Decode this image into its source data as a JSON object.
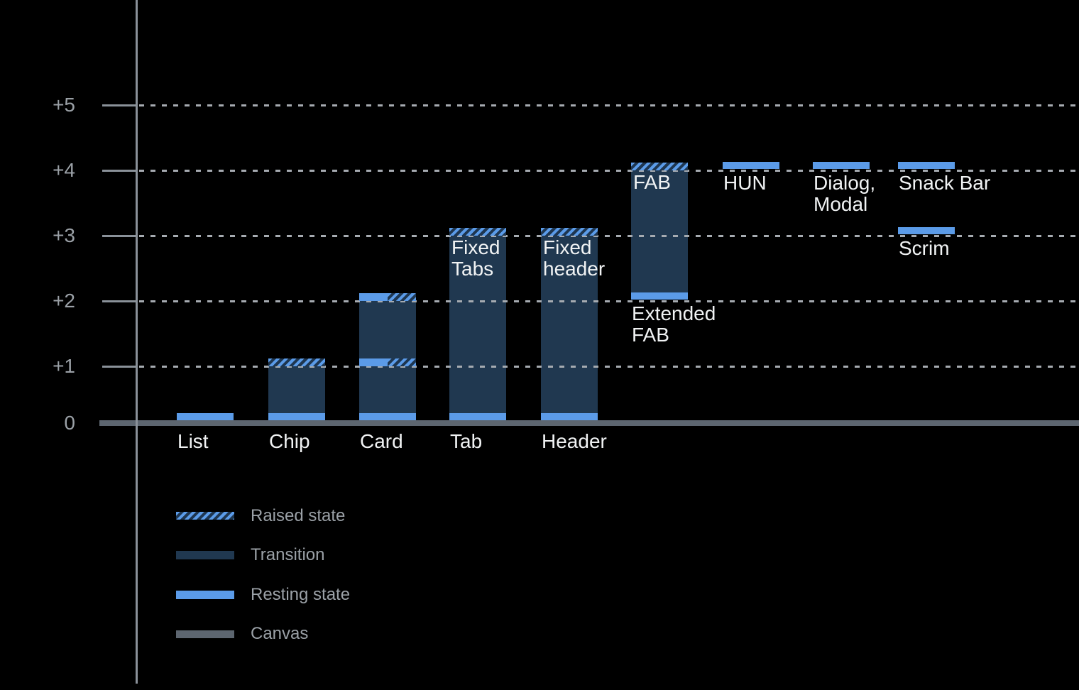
{
  "chart_data": {
    "type": "bar",
    "title": "",
    "y_axis": {
      "ticks": [
        "+5",
        "+4",
        "+3",
        "+2",
        "+1",
        "0"
      ],
      "range": [
        0,
        5
      ],
      "grid": "dotted-horizontal"
    },
    "legend": {
      "position": "bottom-left",
      "items": [
        {
          "label": "Raised state",
          "style": "hatched"
        },
        {
          "label": "Transition",
          "style": "navy"
        },
        {
          "label": "Resting state",
          "style": "blue"
        },
        {
          "label": "Canvas",
          "style": "gray"
        }
      ]
    },
    "colors": {
      "background": "#000000",
      "resting_blue": "#5B9BE8",
      "transition_navy": "#203850",
      "canvas_gray": "#5D6670",
      "axis_gray": "#8A9199",
      "grid_dot_gray": "#A6ABB1",
      "muted_text": "#9BA1A7",
      "label_text": "#F1F3F4"
    },
    "bars": [
      {
        "name": "List",
        "col": 0,
        "axis_label": "List",
        "segments": [
          {
            "kind": "resting",
            "level": 0
          }
        ]
      },
      {
        "name": "Chip",
        "col": 1,
        "axis_label": "Chip",
        "segments": [
          {
            "kind": "resting",
            "level": 0
          },
          {
            "kind": "transition",
            "from": 0,
            "to": 1
          },
          {
            "kind": "raised",
            "level": 1
          }
        ]
      },
      {
        "name": "Card",
        "col": 2,
        "axis_label": "Card",
        "segments": [
          {
            "kind": "resting",
            "level": 0
          },
          {
            "kind": "transition",
            "from": 0,
            "to": 1
          },
          {
            "kind": "split",
            "level": 1
          },
          {
            "kind": "transition",
            "from": 1,
            "to": 2
          },
          {
            "kind": "split",
            "level": 2
          }
        ]
      },
      {
        "name": "Tab",
        "col": 3,
        "axis_label": "Tab",
        "inbar_label": [
          "Fixed",
          "Tabs"
        ],
        "segments": [
          {
            "kind": "resting",
            "level": 0
          },
          {
            "kind": "transition",
            "from": 0,
            "to": 3
          },
          {
            "kind": "raised",
            "level": 3
          }
        ]
      },
      {
        "name": "Header",
        "col": 4,
        "axis_label": "Header",
        "inbar_label": [
          "Fixed",
          "header"
        ],
        "segments": [
          {
            "kind": "resting",
            "level": 0
          },
          {
            "kind": "transition",
            "from": 0,
            "to": 3
          },
          {
            "kind": "raised",
            "level": 3
          }
        ]
      },
      {
        "name": "Extended FAB",
        "col": 5,
        "inbar_label": [
          "FAB"
        ],
        "below_label": [
          "Extended",
          "FAB"
        ],
        "segments": [
          {
            "kind": "resting",
            "level": 2
          },
          {
            "kind": "transition",
            "from": 2,
            "to": 4
          },
          {
            "kind": "raised",
            "level": 4
          }
        ]
      },
      {
        "name": "HUN",
        "col": 6,
        "below_label": [
          "HUN"
        ],
        "segments": [
          {
            "kind": "resting",
            "level": 4
          }
        ]
      },
      {
        "name": "Dialog, Modal",
        "col": 7,
        "below_label": [
          "Dialog,",
          "Modal"
        ],
        "segments": [
          {
            "kind": "resting",
            "level": 4
          }
        ]
      },
      {
        "name": "Snack Bar",
        "col": 8,
        "below_label": [
          "Snack Bar"
        ],
        "segments": [
          {
            "kind": "resting",
            "level": 4
          }
        ]
      },
      {
        "name": "Scrim",
        "col": 8,
        "below_label": [
          "Scrim"
        ],
        "segments": [
          {
            "kind": "resting",
            "level": 3
          }
        ]
      }
    ]
  }
}
